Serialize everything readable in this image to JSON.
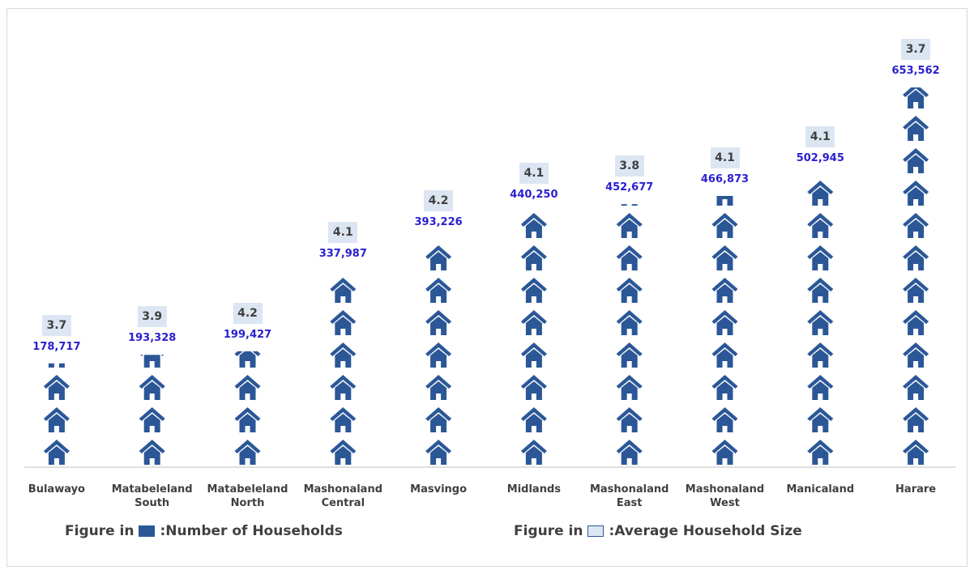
{
  "chart_data": {
    "type": "pictogram",
    "categories": [
      "Bulawayo",
      "Matabeleland South",
      "Matabeleland North",
      "Mashonaland Central",
      "Masvingo",
      "Midlands",
      "Mashonaland East",
      "Mashonaland West",
      "Manicaland",
      "Harare"
    ],
    "series": [
      {
        "name": "Number of Households",
        "color": "#2b5797",
        "values": [
          178717,
          193328,
          199427,
          337987,
          393226,
          440250,
          452677,
          466873,
          502945,
          653562
        ],
        "value_labels": [
          "178,717",
          "193,328",
          "199,427",
          "337,987",
          "393,226",
          "440,250",
          "452,677",
          "466,873",
          "502,945",
          "653,562"
        ]
      },
      {
        "name": "Average Household Size",
        "color": "#dce6f2",
        "values": [
          3.7,
          3.9,
          4.2,
          4.1,
          4.2,
          4.1,
          3.8,
          4.1,
          4.1,
          3.7
        ]
      }
    ],
    "legend": [
      {
        "prefix": "Figure in",
        "label": ":Number of Households"
      },
      {
        "prefix": "Figure in",
        "label": ":Average Household Size"
      }
    ]
  }
}
